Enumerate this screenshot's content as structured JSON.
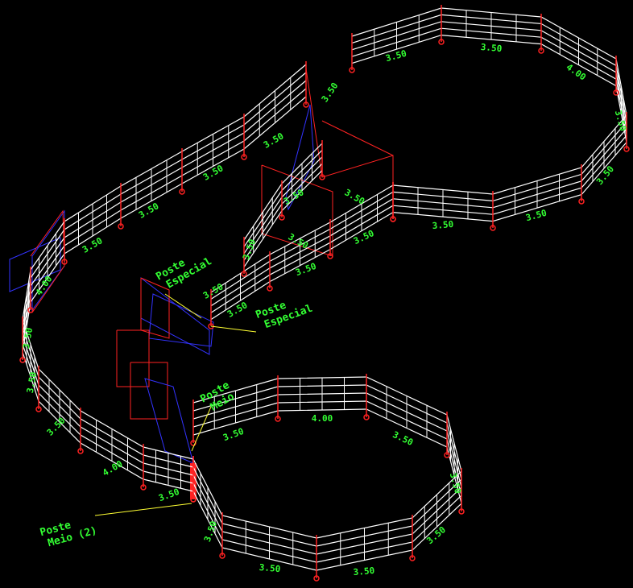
{
  "dimension_labels": [
    "3.50",
    "3.50",
    "4.00",
    "3.50",
    "3.50",
    "3.50",
    "3.50",
    "3.50",
    "3.50",
    "3.50",
    "3.50",
    "3.50",
    "3.50",
    "4.00",
    "3.50",
    "3.50",
    "3.50",
    "3.50",
    "3.50",
    "3.50",
    "3.50",
    "3.50",
    "3.50",
    "3.50",
    "4.00",
    "3.50",
    "3.50",
    "4.00",
    "3.50",
    "3.50",
    "3.50",
    "3.50",
    "3.50",
    "3.50"
  ],
  "annotations": [
    {
      "lines": [
        "Poste",
        "Especial"
      ]
    },
    {
      "lines": [
        "Poste",
        "Especial"
      ]
    },
    {
      "lines": [
        "Poste",
        "Meio"
      ]
    },
    {
      "lines": [
        "Poste",
        "Meio (2)"
      ]
    }
  ]
}
